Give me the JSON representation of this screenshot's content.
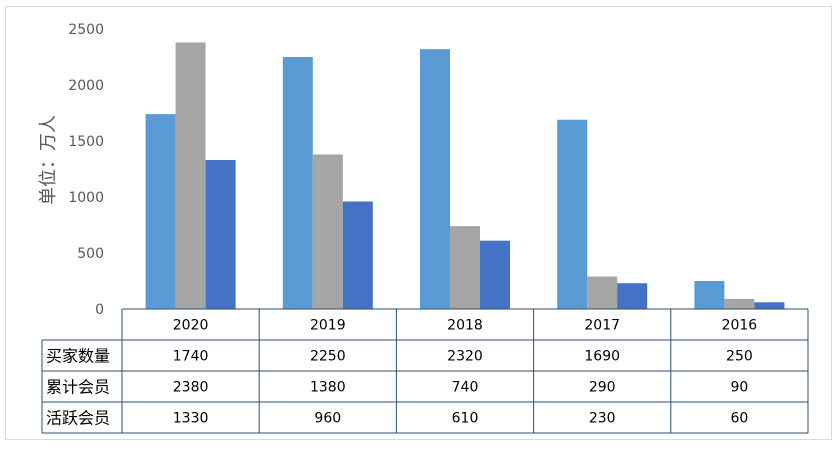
{
  "chart_data": {
    "type": "bar",
    "title": "",
    "ylabel": "单位：万人",
    "xlabel": "",
    "ylim": [
      0,
      2500
    ],
    "yticks": [
      0,
      500,
      1000,
      1500,
      2000,
      2500
    ],
    "grid": false,
    "legend": "data-table",
    "categories": [
      "2020",
      "2019",
      "2018",
      "2017",
      "2016"
    ],
    "series": [
      {
        "name": "买家数量",
        "color": "#5b9bd5",
        "values": [
          1740,
          2250,
          2320,
          1690,
          250
        ]
      },
      {
        "name": "累计会员",
        "color": "#a5a5a5",
        "values": [
          2380,
          1380,
          740,
          290,
          90
        ]
      },
      {
        "name": "活跃会员",
        "color": "#4472c4",
        "values": [
          1330,
          960,
          610,
          230,
          60
        ]
      }
    ]
  }
}
